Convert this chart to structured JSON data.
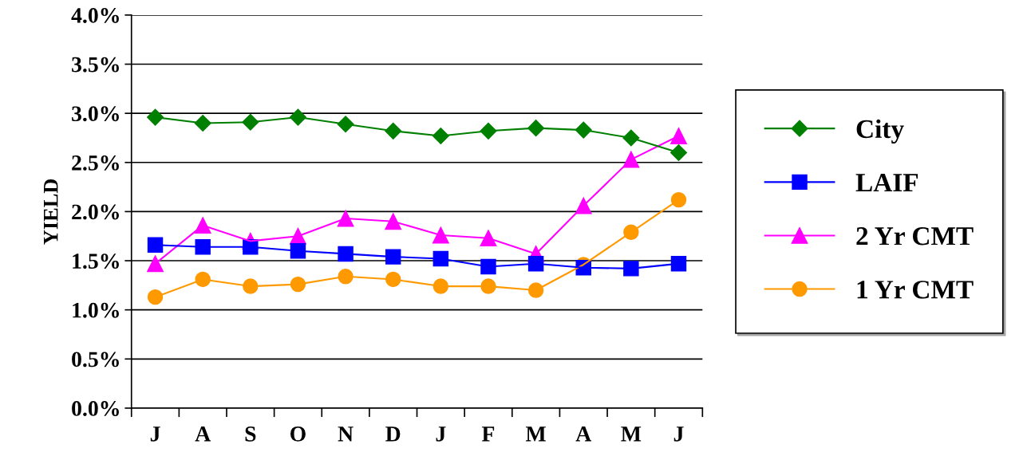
{
  "chart_data": {
    "type": "line",
    "ylabel": "YIELD",
    "categories": [
      "J",
      "A",
      "S",
      "O",
      "N",
      "D",
      "J",
      "F",
      "M",
      "A",
      "M",
      "J"
    ],
    "series": [
      {
        "name": "City",
        "color": "#008000",
        "marker": "diamond",
        "values": [
          2.96,
          2.9,
          2.91,
          2.96,
          2.89,
          2.82,
          2.77,
          2.82,
          2.85,
          2.83,
          2.75,
          2.6
        ]
      },
      {
        "name": "LAIF",
        "color": "#0000ff",
        "marker": "square",
        "values": [
          1.66,
          1.64,
          1.64,
          1.6,
          1.57,
          1.54,
          1.52,
          1.44,
          1.47,
          1.43,
          1.42,
          1.47
        ]
      },
      {
        "name": "2 Yr CMT",
        "color": "#ff00ff",
        "marker": "triangle",
        "values": [
          1.47,
          1.86,
          1.7,
          1.75,
          1.93,
          1.9,
          1.76,
          1.73,
          1.57,
          2.06,
          2.53,
          2.77
        ]
      },
      {
        "name": "1 Yr CMT",
        "color": "#ff9900",
        "marker": "circle",
        "values": [
          1.13,
          1.31,
          1.24,
          1.26,
          1.34,
          1.31,
          1.24,
          1.24,
          1.2,
          1.46,
          1.79,
          2.12
        ]
      }
    ],
    "ylim": [
      0,
      4
    ],
    "yticks": [
      {
        "value": 0,
        "label": "0.0%"
      },
      {
        "value": 0.5,
        "label": "0.5%"
      },
      {
        "value": 1,
        "label": "1.0%"
      },
      {
        "value": 1.5,
        "label": "1.5%"
      },
      {
        "value": 2,
        "label": "2.0%"
      },
      {
        "value": 2.5,
        "label": "2.5%"
      },
      {
        "value": 3,
        "label": "3.0%"
      },
      {
        "value": 3.5,
        "label": "3.5%"
      },
      {
        "value": 4,
        "label": "4.0%"
      }
    ],
    "grid": "y",
    "legend": "right",
    "line_style": "solid"
  }
}
